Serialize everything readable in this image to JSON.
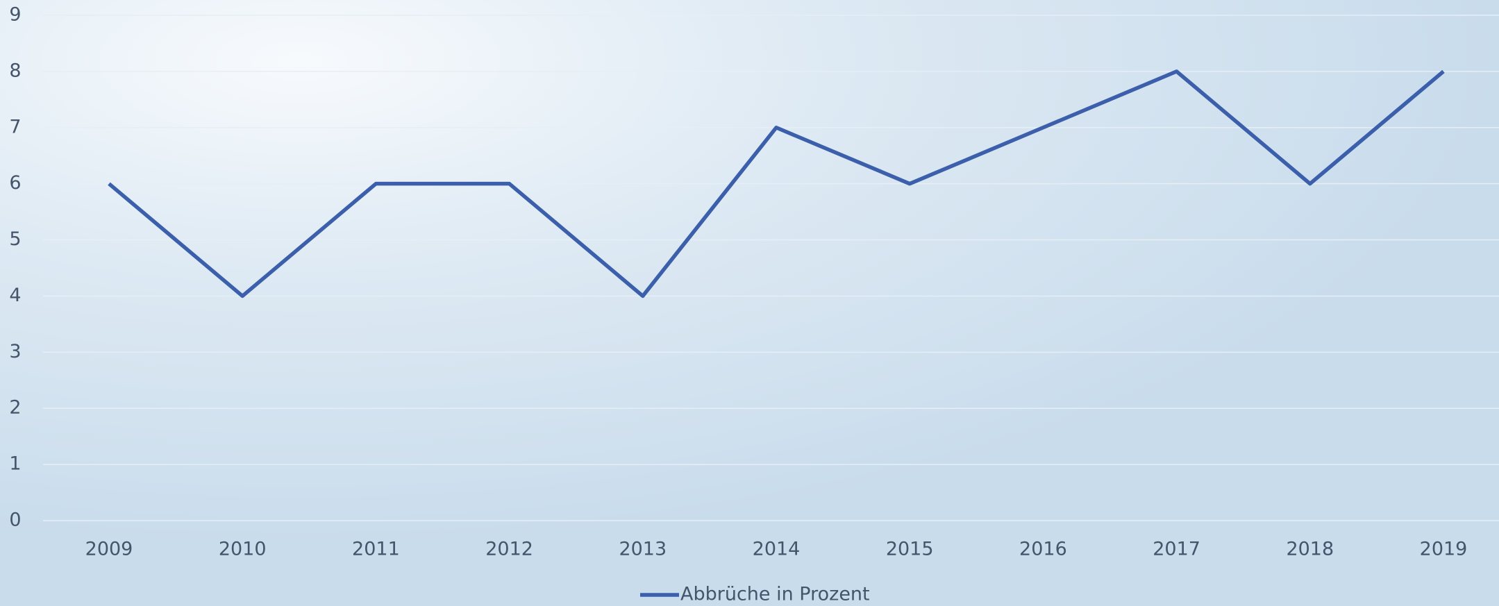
{
  "chart_data": {
    "type": "line",
    "categories": [
      "2009",
      "2010",
      "2011",
      "2012",
      "2013",
      "2014",
      "2015",
      "2016",
      "2017",
      "2018",
      "2019"
    ],
    "series": [
      {
        "name": "Abbrüche in Prozent",
        "color": "#3b5fab",
        "values": [
          6,
          4,
          6,
          6,
          4,
          7,
          6,
          7,
          8,
          6,
          8
        ]
      }
    ],
    "ylim": [
      0,
      9
    ],
    "yticks": [
      0,
      1,
      2,
      3,
      4,
      5,
      6,
      7,
      8,
      9
    ],
    "grid": true,
    "legend": "bottom"
  }
}
